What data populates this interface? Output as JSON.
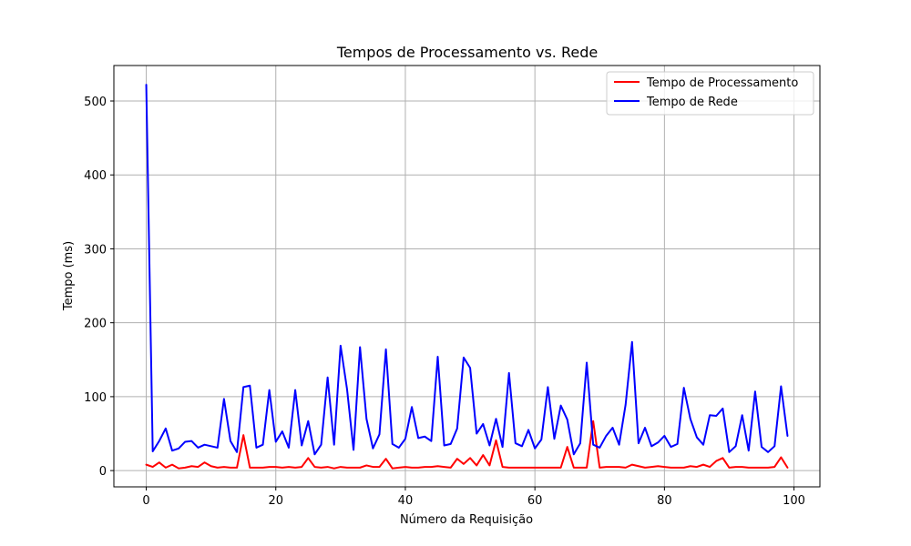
{
  "chart_data": {
    "type": "line",
    "title": "Tempos de Processamento vs. Rede",
    "xlabel": "Número da Requisição",
    "ylabel": "Tempo (ms)",
    "xlim": [
      -5,
      104
    ],
    "ylim": [
      -22,
      548
    ],
    "xticks": [
      0,
      20,
      40,
      60,
      80,
      100
    ],
    "yticks": [
      0,
      100,
      200,
      300,
      400,
      500
    ],
    "grid": true,
    "legend_position": "upper right",
    "series": [
      {
        "name": "Tempo de Processamento",
        "color": "#ff0000",
        "x": [
          0,
          1,
          2,
          3,
          4,
          5,
          6,
          7,
          8,
          9,
          10,
          11,
          12,
          13,
          14,
          15,
          16,
          17,
          18,
          19,
          20,
          21,
          22,
          23,
          24,
          25,
          26,
          27,
          28,
          29,
          30,
          31,
          32,
          33,
          34,
          35,
          36,
          37,
          38,
          39,
          40,
          41,
          42,
          43,
          44,
          45,
          46,
          47,
          48,
          49,
          50,
          51,
          52,
          53,
          54,
          55,
          56,
          57,
          58,
          59,
          60,
          61,
          62,
          63,
          64,
          65,
          66,
          67,
          68,
          69,
          70,
          71,
          72,
          73,
          74,
          75,
          76,
          77,
          78,
          79,
          80,
          81,
          82,
          83,
          84,
          85,
          86,
          87,
          88,
          89,
          90,
          91,
          92,
          93,
          94,
          95,
          96,
          97,
          98,
          99
        ],
        "values": [
          8,
          5,
          11,
          4,
          8,
          3,
          4,
          6,
          5,
          11,
          6,
          4,
          5,
          4,
          4,
          48,
          4,
          4,
          4,
          5,
          5,
          4,
          5,
          4,
          5,
          17,
          5,
          4,
          5,
          3,
          5,
          4,
          4,
          4,
          7,
          5,
          5,
          16,
          3,
          4,
          5,
          4,
          4,
          5,
          5,
          6,
          5,
          4,
          16,
          9,
          17,
          7,
          21,
          7,
          41,
          5,
          4,
          4,
          4,
          4,
          4,
          4,
          4,
          4,
          4,
          32,
          4,
          4,
          4,
          67,
          4,
          5,
          5,
          5,
          4,
          8,
          6,
          4,
          5,
          6,
          5,
          4,
          4,
          4,
          6,
          5,
          8,
          5,
          13,
          17,
          4,
          5,
          5,
          4,
          4,
          4,
          4,
          5,
          18,
          4
        ]
      },
      {
        "name": "Tempo de Rede",
        "color": "#0000ff",
        "x": [
          0,
          1,
          2,
          3,
          4,
          5,
          6,
          7,
          8,
          9,
          10,
          11,
          12,
          13,
          14,
          15,
          16,
          17,
          18,
          19,
          20,
          21,
          22,
          23,
          24,
          25,
          26,
          27,
          28,
          29,
          30,
          31,
          32,
          33,
          34,
          35,
          36,
          37,
          38,
          39,
          40,
          41,
          42,
          43,
          44,
          45,
          46,
          47,
          48,
          49,
          50,
          51,
          52,
          53,
          54,
          55,
          56,
          57,
          58,
          59,
          60,
          61,
          62,
          63,
          64,
          65,
          66,
          67,
          68,
          69,
          70,
          71,
          72,
          73,
          74,
          75,
          76,
          77,
          78,
          79,
          80,
          81,
          82,
          83,
          84,
          85,
          86,
          87,
          88,
          89,
          90,
          91,
          92,
          93,
          94,
          95,
          96,
          97,
          98,
          99
        ],
        "values": [
          522,
          26,
          40,
          57,
          27,
          30,
          39,
          40,
          31,
          35,
          33,
          31,
          97,
          40,
          25,
          113,
          115,
          31,
          35,
          109,
          39,
          53,
          31,
          109,
          34,
          67,
          22,
          35,
          126,
          35,
          169,
          110,
          28,
          167,
          70,
          30,
          49,
          164,
          36,
          31,
          43,
          86,
          44,
          46,
          40,
          154,
          34,
          36,
          57,
          153,
          139,
          50,
          63,
          34,
          70,
          32,
          132,
          37,
          33,
          55,
          30,
          42,
          113,
          43,
          88,
          69,
          22,
          37,
          146,
          35,
          31,
          47,
          58,
          35,
          89,
          174,
          37,
          58,
          33,
          38,
          47,
          32,
          36,
          112,
          70,
          45,
          35,
          75,
          74,
          84,
          25,
          33,
          75,
          27,
          107,
          32,
          25,
          33,
          114,
          47
        ]
      }
    ]
  }
}
